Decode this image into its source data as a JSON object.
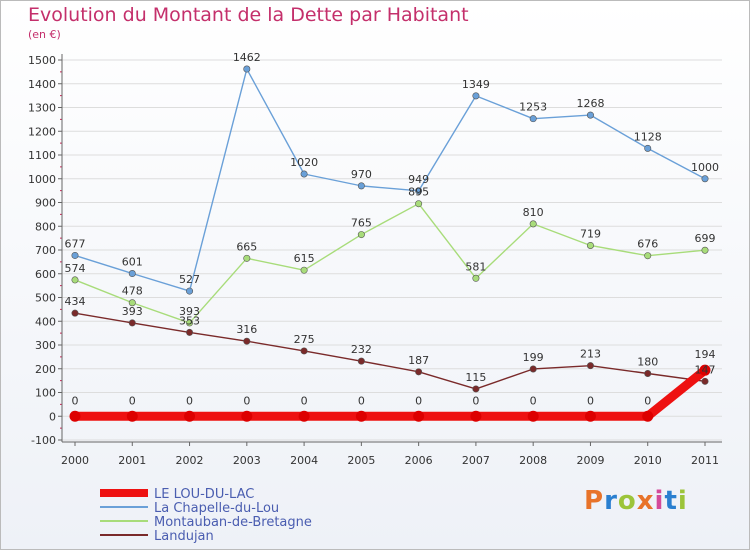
{
  "header": {
    "title": "Evolution du Montant de la Dette par Habitant",
    "subtitle": "(en €)"
  },
  "logo": {
    "text": "Proxiti",
    "colors": [
      "#e8732a",
      "#2a7fd0",
      "#9cc43a",
      "#e8732a",
      "#d44a9a",
      "#2a7fd0",
      "#9cc43a"
    ]
  },
  "chart_data": {
    "type": "line",
    "x": [
      "2000",
      "2001",
      "2002",
      "2003",
      "2004",
      "2005",
      "2006",
      "2007",
      "2008",
      "2009",
      "2010",
      "2011"
    ],
    "ylim": [
      -100,
      1500
    ],
    "yticks": [
      -100,
      0,
      100,
      200,
      300,
      400,
      500,
      600,
      700,
      800,
      900,
      1000,
      1100,
      1200,
      1300,
      1400,
      1500
    ],
    "grid": "horizontal",
    "legend_position": "bottom-left",
    "series": [
      {
        "name": "LE LOU-DU-LAC",
        "color": "#ee1111",
        "values": [
          0,
          0,
          0,
          0,
          0,
          0,
          0,
          0,
          0,
          0,
          0,
          194
        ],
        "labels": [
          "0",
          "0",
          "0",
          "0",
          "0",
          "0",
          "0",
          "0",
          "0",
          "0",
          "0",
          "194"
        ]
      },
      {
        "name": "La Chapelle-du-Lou",
        "color": "#6aa0d8",
        "values": [
          677,
          601,
          527,
          1462,
          1020,
          970,
          949,
          1349,
          1253,
          1268,
          1128,
          1000
        ],
        "labels": [
          "677",
          "601",
          "527",
          "1462",
          "1020",
          "970",
          "949",
          "1349",
          "1253",
          "1268",
          "1128",
          "1000"
        ]
      },
      {
        "name": "Montauban-de-Bretagne",
        "color": "#a8dc7a",
        "values": [
          574,
          478,
          393,
          665,
          615,
          765,
          895,
          581,
          810,
          719,
          676,
          699
        ],
        "labels": [
          "574",
          "478",
          "393",
          "665",
          "615",
          "765",
          "895",
          "581",
          "810",
          "719",
          "676",
          "699"
        ]
      },
      {
        "name": "Landujan",
        "color": "#7a2a2a",
        "values": [
          434,
          393,
          353,
          316,
          275,
          232,
          187,
          115,
          199,
          213,
          180,
          147
        ],
        "labels": [
          "434",
          "393",
          "353",
          "316",
          "275",
          "232",
          "187",
          "115",
          "199",
          "213",
          "180",
          "147"
        ]
      }
    ]
  }
}
